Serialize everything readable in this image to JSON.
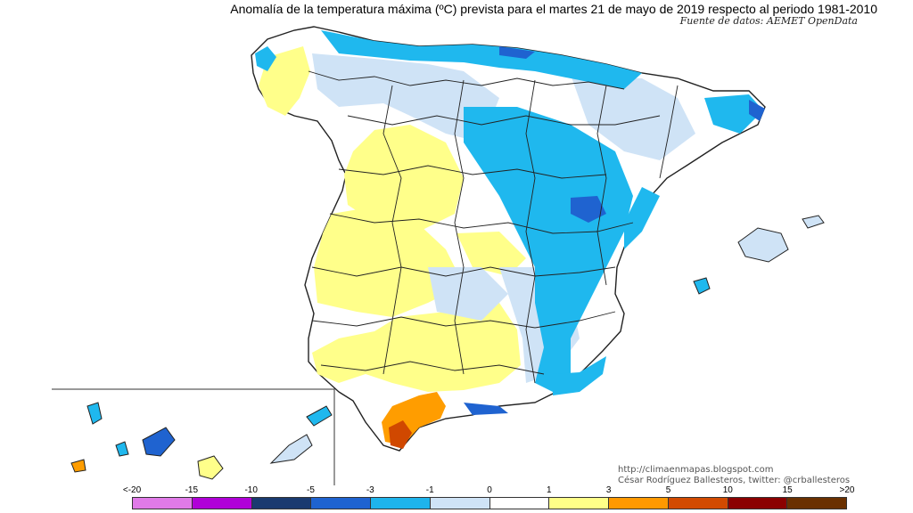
{
  "title": "Anomalía de la temperatura máxima (ºC) prevista para el martes 21 de mayo de 2019 respecto al periodo 1981-2010",
  "source": "Fuente de datos: AEMET OpenData",
  "credits": {
    "blog": "http://climaenmapas.blogspot.com",
    "author": "César Rodríguez Ballesteros, twitter: @crballesteros"
  },
  "legend": {
    "ticks": [
      "<-20",
      "-15",
      "-10",
      "-5",
      "-3",
      "-1",
      "0",
      "1",
      "3",
      "5",
      "10",
      "15",
      ">20"
    ],
    "colors": [
      "#e07ae8",
      "#b000d8",
      "#1a3a70",
      "#1f63d0",
      "#1eb4ec",
      "#cfe3f6",
      "#ffffff",
      "#ffff88",
      "#ff9900",
      "#d24a00",
      "#8b0000",
      "#6a3000"
    ]
  }
}
